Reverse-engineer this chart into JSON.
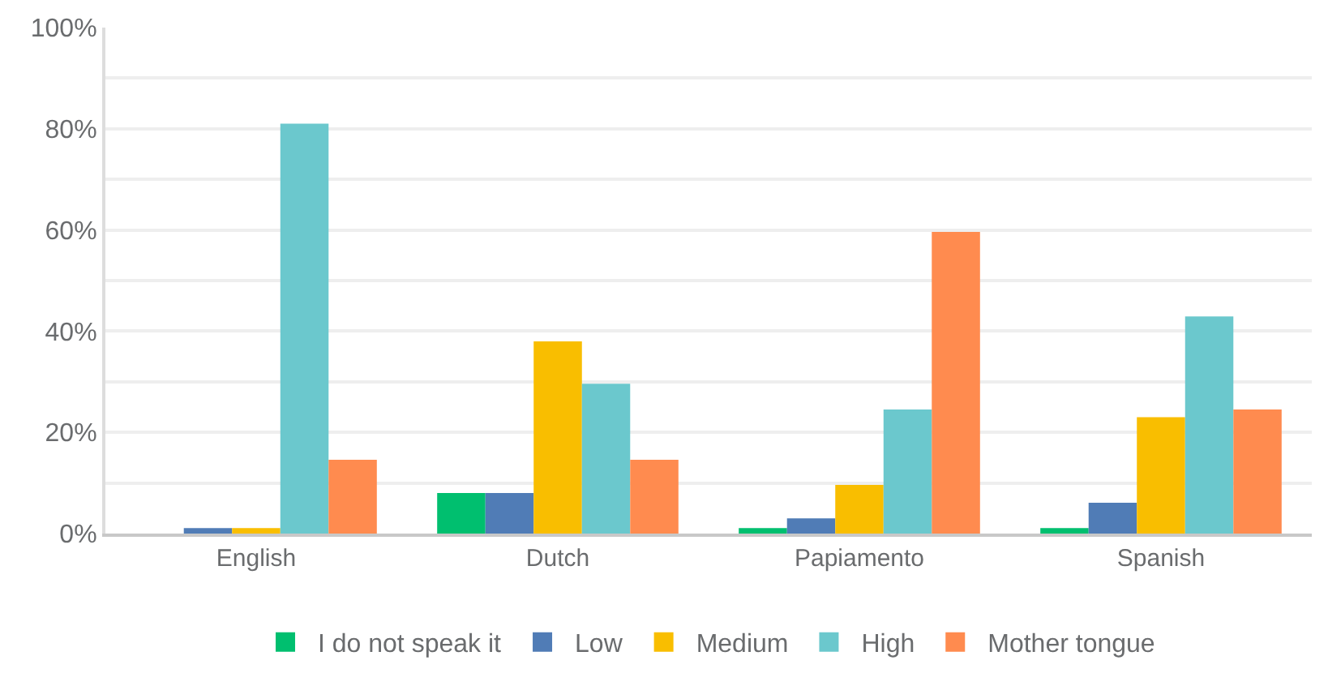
{
  "chart_data": {
    "type": "bar",
    "categories": [
      "English",
      "Dutch",
      "Papiamento",
      "Spanish"
    ],
    "series": [
      {
        "name": "I do not speak it",
        "color": "#00bf6f",
        "values": [
          0,
          8.0,
          1.1,
          1.1
        ]
      },
      {
        "name": "Low",
        "color": "#507cb6",
        "values": [
          1.1,
          8.0,
          3.0,
          6.1
        ]
      },
      {
        "name": "Medium",
        "color": "#f9be00",
        "values": [
          1.1,
          38.0,
          9.6,
          23.0
        ]
      },
      {
        "name": "High",
        "color": "#6bc8cd",
        "values": [
          81.0,
          29.6,
          24.5,
          42.9
        ]
      },
      {
        "name": "Mother tongue",
        "color": "#ff8b4f",
        "values": [
          14.6,
          14.6,
          59.6,
          24.5
        ]
      }
    ],
    "ylim": [
      0,
      100
    ],
    "yticks": [
      {
        "value": 0,
        "label": "0%"
      },
      {
        "value": 10,
        "label": null
      },
      {
        "value": 20,
        "label": "20%"
      },
      {
        "value": 30,
        "label": null
      },
      {
        "value": 40,
        "label": "40%"
      },
      {
        "value": 50,
        "label": null
      },
      {
        "value": 60,
        "label": "60%"
      },
      {
        "value": 70,
        "label": null
      },
      {
        "value": 80,
        "label": "80%"
      },
      {
        "value": 90,
        "label": null
      },
      {
        "value": 100,
        "label": "100%"
      }
    ],
    "grid": "y",
    "legend": "bottom"
  }
}
